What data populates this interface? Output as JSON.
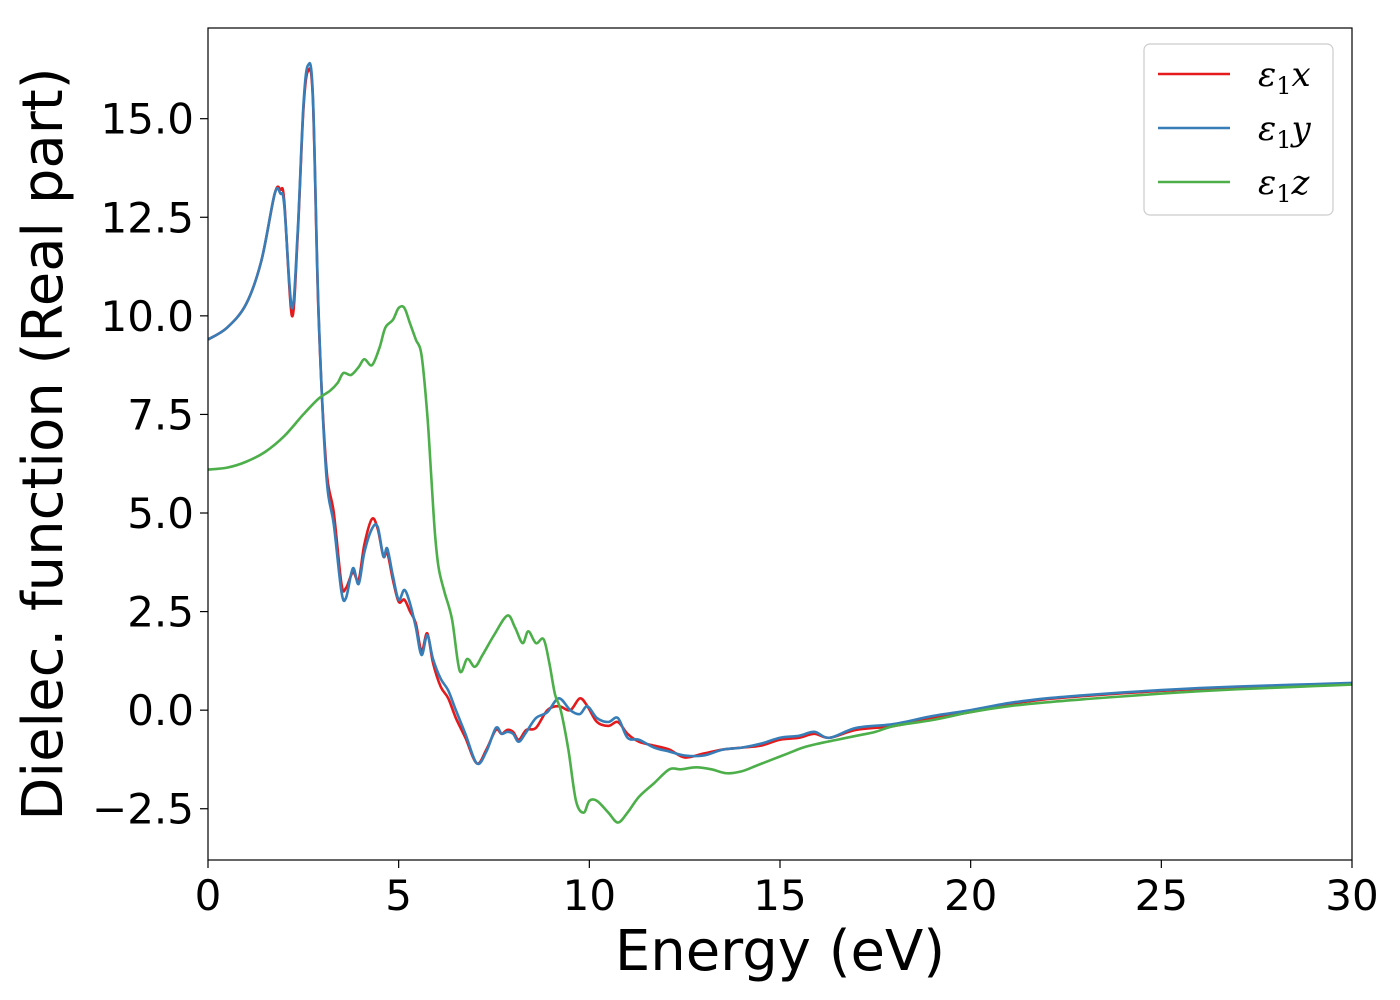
{
  "chart_data": {
    "type": "line",
    "title": "",
    "xlabel": "Energy (eV)",
    "ylabel": "Dielec. function (Real part)",
    "xlim": [
      0,
      30
    ],
    "ylim": [
      -3.8,
      17.3
    ],
    "xticks": [
      0,
      5,
      10,
      15,
      20,
      25,
      30
    ],
    "xtick_labels": [
      "0",
      "5",
      "10",
      "15",
      "20",
      "25",
      "30"
    ],
    "yticks": [
      -2.5,
      0.0,
      2.5,
      5.0,
      7.5,
      10.0,
      12.5,
      15.0
    ],
    "ytick_labels": [
      "−2.5",
      "0.0",
      "2.5",
      "5.0",
      "7.5",
      "10.0",
      "12.5",
      "15.0"
    ],
    "grid": false,
    "legend_position": "top-right",
    "series": [
      {
        "name": "ε1x",
        "legend_main": "ε",
        "legend_sub": "1",
        "legend_var": "x",
        "color": "#e41a1c",
        "x": [
          0,
          0.5,
          1.0,
          1.4,
          1.75,
          1.9,
          2.0,
          2.2,
          2.35,
          2.5,
          2.62,
          2.75,
          2.9,
          3.1,
          3.3,
          3.5,
          3.62,
          3.8,
          3.95,
          4.1,
          4.3,
          4.45,
          4.6,
          4.7,
          4.85,
          5.0,
          5.15,
          5.3,
          5.45,
          5.6,
          5.75,
          5.9,
          6.1,
          6.3,
          6.5,
          6.75,
          7.05,
          7.3,
          7.55,
          7.7,
          7.85,
          8.0,
          8.15,
          8.35,
          8.6,
          8.9,
          9.2,
          9.5,
          9.75,
          9.95,
          10.2,
          10.5,
          10.75,
          11.0,
          11.3,
          11.7,
          12.1,
          12.5,
          13.0,
          13.5,
          14.0,
          14.5,
          15.0,
          15.5,
          15.9,
          16.3,
          17.0,
          18.0,
          19.0,
          20.0,
          21.0,
          22.0,
          23.0,
          24.0,
          25.0,
          26.0,
          27.0,
          28.0,
          29.0,
          30.0
        ],
        "y": [
          9.4,
          9.7,
          10.3,
          11.4,
          13.1,
          13.2,
          12.9,
          10.0,
          12.0,
          15.2,
          16.2,
          15.5,
          10.0,
          6.2,
          5.0,
          3.2,
          3.1,
          3.5,
          3.3,
          4.2,
          4.85,
          4.6,
          3.9,
          4.0,
          3.3,
          2.75,
          2.8,
          2.5,
          2.2,
          1.5,
          1.95,
          1.2,
          0.6,
          0.3,
          -0.2,
          -0.7,
          -1.35,
          -1.0,
          -0.5,
          -0.6,
          -0.5,
          -0.55,
          -0.75,
          -0.5,
          -0.45,
          0.0,
          0.1,
          0.0,
          0.3,
          0.1,
          -0.3,
          -0.4,
          -0.3,
          -0.6,
          -0.8,
          -0.9,
          -1.0,
          -1.2,
          -1.1,
          -1.0,
          -0.95,
          -0.9,
          -0.75,
          -0.7,
          -0.6,
          -0.7,
          -0.5,
          -0.4,
          -0.2,
          -0.05,
          0.15,
          0.28,
          0.36,
          0.43,
          0.49,
          0.54,
          0.58,
          0.62,
          0.65,
          0.68
        ]
      },
      {
        "name": "ε1y",
        "legend_main": "ε",
        "legend_sub": "1",
        "legend_var": "y",
        "color": "#377eb8",
        "x": [
          0,
          0.5,
          1.0,
          1.4,
          1.75,
          1.9,
          2.0,
          2.2,
          2.35,
          2.5,
          2.62,
          2.75,
          2.9,
          3.1,
          3.3,
          3.5,
          3.62,
          3.8,
          3.95,
          4.1,
          4.3,
          4.45,
          4.6,
          4.7,
          4.85,
          5.0,
          5.15,
          5.3,
          5.45,
          5.6,
          5.75,
          5.9,
          6.1,
          6.3,
          6.5,
          6.75,
          7.05,
          7.3,
          7.55,
          7.7,
          7.85,
          8.0,
          8.15,
          8.35,
          8.6,
          8.9,
          9.2,
          9.5,
          9.75,
          9.95,
          10.2,
          10.5,
          10.75,
          11.0,
          11.3,
          11.7,
          12.1,
          12.5,
          13.0,
          13.5,
          14.0,
          14.5,
          15.0,
          15.5,
          15.9,
          16.3,
          17.0,
          18.0,
          19.0,
          20.0,
          21.0,
          22.0,
          23.0,
          24.0,
          25.0,
          26.0,
          27.0,
          28.0,
          29.0,
          30.0
        ],
        "y": [
          9.4,
          9.7,
          10.3,
          11.4,
          13.1,
          13.1,
          12.8,
          10.2,
          12.1,
          15.3,
          16.35,
          15.6,
          10.1,
          6.0,
          4.7,
          3.0,
          2.85,
          3.6,
          3.2,
          4.0,
          4.6,
          4.65,
          3.9,
          4.1,
          3.4,
          2.8,
          3.05,
          2.7,
          2.1,
          1.4,
          1.9,
          1.3,
          0.8,
          0.5,
          0.0,
          -0.6,
          -1.35,
          -1.05,
          -0.45,
          -0.6,
          -0.55,
          -0.6,
          -0.8,
          -0.55,
          -0.2,
          -0.05,
          0.3,
          0.0,
          -0.1,
          0.1,
          -0.2,
          -0.3,
          -0.2,
          -0.7,
          -0.75,
          -0.95,
          -1.05,
          -1.15,
          -1.15,
          -1.0,
          -0.95,
          -0.85,
          -0.7,
          -0.65,
          -0.55,
          -0.7,
          -0.45,
          -0.35,
          -0.15,
          0.0,
          0.18,
          0.3,
          0.38,
          0.45,
          0.51,
          0.56,
          0.6,
          0.63,
          0.66,
          0.69
        ]
      },
      {
        "name": "ε1z",
        "legend_main": "ε",
        "legend_sub": "1",
        "legend_var": "z",
        "color": "#4daf4a",
        "x": [
          0,
          0.5,
          1.0,
          1.5,
          2.0,
          2.5,
          2.9,
          3.2,
          3.4,
          3.55,
          3.75,
          3.95,
          4.1,
          4.3,
          4.5,
          4.65,
          4.85,
          5.0,
          5.15,
          5.3,
          5.45,
          5.6,
          5.75,
          5.85,
          5.95,
          6.05,
          6.2,
          6.4,
          6.6,
          6.8,
          7.0,
          7.2,
          7.5,
          7.85,
          8.05,
          8.25,
          8.4,
          8.6,
          8.8,
          8.95,
          9.1,
          9.25,
          9.45,
          9.65,
          9.85,
          10.0,
          10.2,
          10.5,
          10.75,
          11.0,
          11.3,
          11.7,
          12.1,
          12.4,
          12.8,
          13.2,
          13.6,
          14.0,
          14.4,
          14.8,
          15.2,
          15.6,
          16.0,
          16.5,
          17.0,
          17.5,
          18.0,
          19.0,
          20.0,
          21.0,
          22.0,
          23.0,
          24.0,
          25.0,
          26.0,
          27.0,
          28.0,
          29.0,
          30.0
        ],
        "y": [
          6.1,
          6.15,
          6.3,
          6.55,
          6.95,
          7.5,
          7.9,
          8.1,
          8.3,
          8.55,
          8.5,
          8.7,
          8.9,
          8.75,
          9.2,
          9.7,
          9.9,
          10.2,
          10.2,
          9.8,
          9.4,
          9.0,
          7.5,
          6.0,
          4.5,
          3.6,
          3.0,
          2.3,
          1.0,
          1.3,
          1.1,
          1.4,
          1.9,
          2.4,
          2.1,
          1.7,
          2.0,
          1.7,
          1.8,
          1.2,
          0.4,
          0.0,
          -1.0,
          -2.3,
          -2.6,
          -2.3,
          -2.3,
          -2.6,
          -2.85,
          -2.6,
          -2.2,
          -1.85,
          -1.5,
          -1.5,
          -1.45,
          -1.5,
          -1.6,
          -1.55,
          -1.4,
          -1.25,
          -1.1,
          -0.95,
          -0.85,
          -0.75,
          -0.65,
          -0.55,
          -0.4,
          -0.25,
          -0.05,
          0.1,
          0.2,
          0.28,
          0.35,
          0.42,
          0.48,
          0.53,
          0.57,
          0.61,
          0.65
        ]
      }
    ]
  }
}
